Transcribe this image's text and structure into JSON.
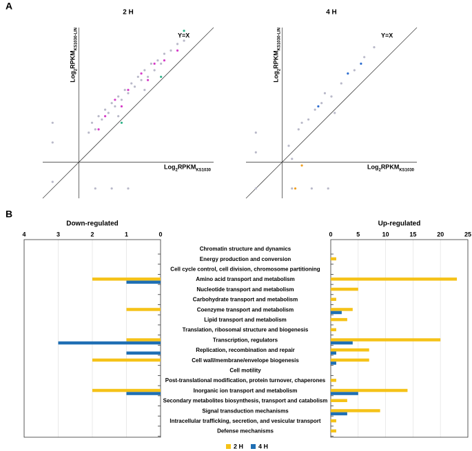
{
  "panels": [
    "A",
    "B"
  ],
  "chart_data": [
    {
      "type": "scatter",
      "title": "2 H",
      "annotation": "Y=X",
      "x_label": [
        "Log",
        "2",
        "RPKM",
        "KS1030"
      ],
      "y_label": [
        "Log",
        "2",
        "RPKM",
        "KS1030-LIN"
      ],
      "xlim": [
        -1.1,
        4.1
      ],
      "ylim": [
        -1.1,
        4.1
      ],
      "series": [
        {
          "color": "#b9b9c9",
          "x": [
            0.3,
            0.4,
            0.5,
            0.6,
            0.7,
            0.8,
            0.9,
            1.0,
            1.1,
            1.2,
            1.3,
            1.4,
            1.5,
            1.6,
            1.7,
            1.8,
            1.9,
            2.0,
            2.1,
            2.2,
            2.3,
            2.4,
            2.5,
            2.6,
            2.8,
            3.0,
            3.2,
            1.2,
            2.0,
            -0.8,
            -0.8,
            -0.8,
            0.5,
            1.0,
            1.5
          ],
          "y": [
            0.9,
            1.2,
            1.0,
            1.4,
            1.3,
            1.6,
            1.5,
            1.8,
            1.7,
            2.0,
            1.9,
            2.2,
            2.1,
            2.4,
            2.3,
            2.6,
            2.5,
            2.8,
            2.6,
            3.0,
            2.8,
            3.1,
            3.0,
            3.3,
            3.4,
            3.6,
            3.7,
            1.4,
            2.2,
            1.2,
            0.6,
            -0.6,
            -0.8,
            -0.8,
            -0.8
          ]
        },
        {
          "color": "#d63cc8",
          "x": [
            0.8,
            1.1,
            1.5,
            1.9,
            2.3,
            2.6,
            3.0,
            1.3,
            2.1,
            0.6
          ],
          "y": [
            1.4,
            1.9,
            2.2,
            2.7,
            3.0,
            3.1,
            3.4,
            1.7,
            2.5,
            1.0
          ]
        },
        {
          "color": "#2fb38a",
          "x": [
            3.2,
            2.5,
            1.3
          ],
          "y": [
            4.0,
            2.6,
            1.2
          ]
        }
      ]
    },
    {
      "type": "scatter",
      "title": "4 H",
      "annotation": "Y=X",
      "x_label": [
        "Log",
        "2",
        "RPKM",
        "KS1030"
      ],
      "y_label": [
        "Log",
        "2",
        "RPKM",
        "KS1030-LIN"
      ],
      "xlim": [
        -1.1,
        4.1
      ],
      "ylim": [
        -1.1,
        4.1
      ],
      "series": [
        {
          "color": "#b9b9c9",
          "x": [
            0.2,
            0.5,
            0.8,
            1.0,
            1.2,
            1.5,
            1.8,
            2.2,
            2.5,
            2.8,
            0.6,
            1.3,
            1.6,
            -0.8,
            -0.8,
            -0.8,
            0.3,
            0.9,
            1.4,
            0.3
          ],
          "y": [
            0.5,
            1.0,
            1.3,
            1.6,
            1.8,
            2.0,
            2.4,
            2.8,
            3.2,
            3.5,
            1.2,
            2.1,
            1.5,
            0.9,
            0.3,
            -0.8,
            -0.8,
            -0.8,
            -0.8,
            0.1
          ]
        },
        {
          "color": "#2f6fd0",
          "x": [
            2.0,
            2.4,
            1.1
          ],
          "y": [
            2.7,
            3.0,
            1.7
          ]
        },
        {
          "color": "#f0a020",
          "x": [
            0.4,
            0.6
          ],
          "y": [
            -0.8,
            -0.1
          ]
        }
      ]
    },
    {
      "type": "butterfly",
      "categories": [
        "Chromatin structure and dynamics",
        "Energy production and conversion",
        "Cell cycle control, cell division, chromosome partitioning",
        "Amino acid transport and metabolism",
        "Nucleotide transport and metabolism",
        "Carbohydrate transport and metabolism",
        "Coenzyme transport and metabolism",
        "Lipid transport and metabolism",
        "Translation, ribosomal structure and biogenesis",
        "Transcription, regulators",
        "Replication, recombination and repair",
        "Cell wall/membrane/envelope biogenesis",
        "Cell motility",
        "Post-translational modification, protein turnover, chaperones",
        "Inorganic ion transport and metabolism",
        "Secondary metabolites biosynthesis, transport and catabolism",
        "Signal transduction mechanisms",
        "Intracellular trafficking, secretion, and vesicular transport",
        "Defense mechanisms"
      ],
      "down_title": "Down-regulated",
      "up_title": "Up-regulated",
      "down_xlim": [
        0,
        4
      ],
      "down_xticks": [
        0,
        1,
        2,
        3,
        4
      ],
      "up_xlim": [
        0,
        25
      ],
      "up_xticks": [
        0,
        5,
        10,
        15,
        20,
        25
      ],
      "grid": true,
      "series": [
        {
          "name": "2 H",
          "color": "#f5c218",
          "down": [
            0,
            0,
            0,
            2,
            0,
            0,
            1,
            0,
            0,
            1,
            0,
            2,
            0,
            0,
            2,
            0,
            0,
            0,
            0
          ],
          "up": [
            0,
            1,
            0,
            23,
            5,
            1,
            4,
            3,
            1,
            20,
            7,
            7,
            0,
            1,
            14,
            3,
            9,
            1,
            1
          ]
        },
        {
          "name": "4 H",
          "color": "#1f6fb4",
          "down": [
            0,
            0,
            0,
            1,
            0,
            0,
            0,
            0,
            0,
            3,
            1,
            0,
            0,
            0,
            1,
            0,
            0,
            0,
            0
          ],
          "up": [
            0,
            0,
            0,
            0,
            0,
            0,
            2,
            0,
            0,
            4,
            1,
            1,
            0,
            0,
            5,
            0,
            3,
            0,
            0
          ]
        }
      ]
    }
  ]
}
